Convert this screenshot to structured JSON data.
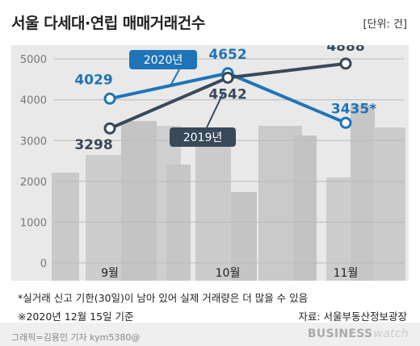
{
  "title": "서울 다세대·연립 매매거래건수",
  "unit_label": "[단위: 건]",
  "notes": [
    "*실거래 신고 기한(30일)이 남아 있어 실제 거래량은 더 많을 수 있음",
    "※2020년 12월 15일 기준"
  ],
  "source": "자료: 서울부동산정보광장",
  "credit": "그래픽=김용민 기자 kym5380@",
  "brand": {
    "main": "BUSINESS",
    "sub": "watch"
  },
  "colors": {
    "series_2020": "#1f74b8",
    "series_2019": "#38495a",
    "point_fill": "#ffffff",
    "background": "#e9e9e9"
  },
  "chart_data": {
    "type": "line",
    "categories": [
      "9월",
      "10월",
      "11월"
    ],
    "yticks": [
      0,
      1000,
      2000,
      3000,
      4000,
      5000
    ],
    "ylim": [
      0,
      5300
    ],
    "grid": true,
    "series": [
      {
        "name": "2020년",
        "values": [
          4029,
          4652,
          3435
        ],
        "labels": [
          "4029",
          "4652",
          "3435*"
        ],
        "color": "#1f74b8"
      },
      {
        "name": "2019년",
        "values": [
          3298,
          4542,
          4888
        ],
        "labels": [
          "3298",
          "4542",
          "4888"
        ],
        "color": "#38495a"
      }
    ]
  }
}
